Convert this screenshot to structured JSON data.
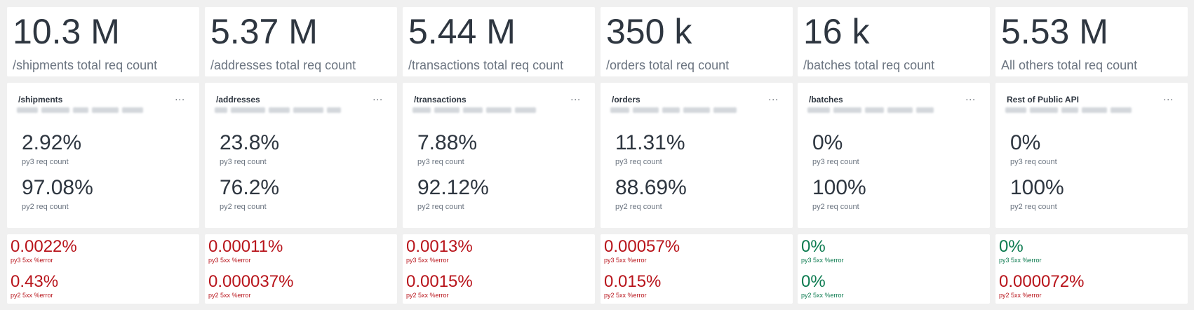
{
  "totals": [
    {
      "value": "10.3 M",
      "label": "/shipments total req count"
    },
    {
      "value": "5.37 M",
      "label": "/addresses total req count"
    },
    {
      "value": "5.44 M",
      "label": "/transactions total req count"
    },
    {
      "value": "350 k",
      "label": "/orders total req count"
    },
    {
      "value": "16 k",
      "label": "/batches total req count"
    },
    {
      "value": "5.53 M",
      "label": "All others total req count"
    }
  ],
  "splits": [
    {
      "title": "/shipments",
      "menu": "...",
      "py3_value": "2.92%",
      "py3_label": "py3 req count",
      "py2_value": "97.08%",
      "py2_label": "py2 req count"
    },
    {
      "title": "/addresses",
      "menu": "...",
      "py3_value": "23.8%",
      "py3_label": "py3 req count",
      "py2_value": "76.2%",
      "py2_label": "py2 req count"
    },
    {
      "title": "/transactions",
      "menu": "...",
      "py3_value": "7.88%",
      "py3_label": "py3 req count",
      "py2_value": "92.12%",
      "py2_label": "py2 req count"
    },
    {
      "title": "/orders",
      "menu": "...",
      "py3_value": "11.31%",
      "py3_label": "py3 req count",
      "py2_value": "88.69%",
      "py2_label": "py2 req count"
    },
    {
      "title": "/batches",
      "menu": "...",
      "py3_value": "0%",
      "py3_label": "py3 req count",
      "py2_value": "100%",
      "py2_label": "py2 req count"
    },
    {
      "title": "Rest of Public API",
      "menu": "...",
      "py3_value": "0%",
      "py3_label": "py3 req count",
      "py2_value": "100%",
      "py2_label": "py2 req count"
    }
  ],
  "errors": [
    {
      "py3_value": "0.0022%",
      "py3_label": "py3 5xx %error",
      "py3_status": "red",
      "py2_value": "0.43%",
      "py2_label": "py2 5xx %error",
      "py2_status": "red"
    },
    {
      "py3_value": "0.00011%",
      "py3_label": "py3 5xx %error",
      "py3_status": "red",
      "py2_value": "0.000037%",
      "py2_label": "py2 5xx %error",
      "py2_status": "red"
    },
    {
      "py3_value": "0.0013%",
      "py3_label": "py3 5xx %error",
      "py3_status": "red",
      "py2_value": "0.0015%",
      "py2_label": "py2 5xx %error",
      "py2_status": "red"
    },
    {
      "py3_value": "0.00057%",
      "py3_label": "py3 5xx %error",
      "py3_status": "red",
      "py2_value": "0.015%",
      "py2_label": "py2 5xx %error",
      "py2_status": "red"
    },
    {
      "py3_value": "0%",
      "py3_label": "py3 5xx %error",
      "py3_status": "green",
      "py2_value": "0%",
      "py2_label": "py2 5xx %error",
      "py2_status": "green"
    },
    {
      "py3_value": "0%",
      "py3_label": "py3 5xx %error",
      "py3_status": "green",
      "py2_value": "0.000072%",
      "py2_label": "py2 5xx %error",
      "py2_status": "red"
    }
  ],
  "colors": {
    "error": "#b8141b",
    "ok": "#0b7a4f",
    "text": "#2e3640",
    "muted": "#6b7480",
    "background": "#f0f0f0"
  },
  "icons": {
    "menu": "more-options-icon"
  }
}
